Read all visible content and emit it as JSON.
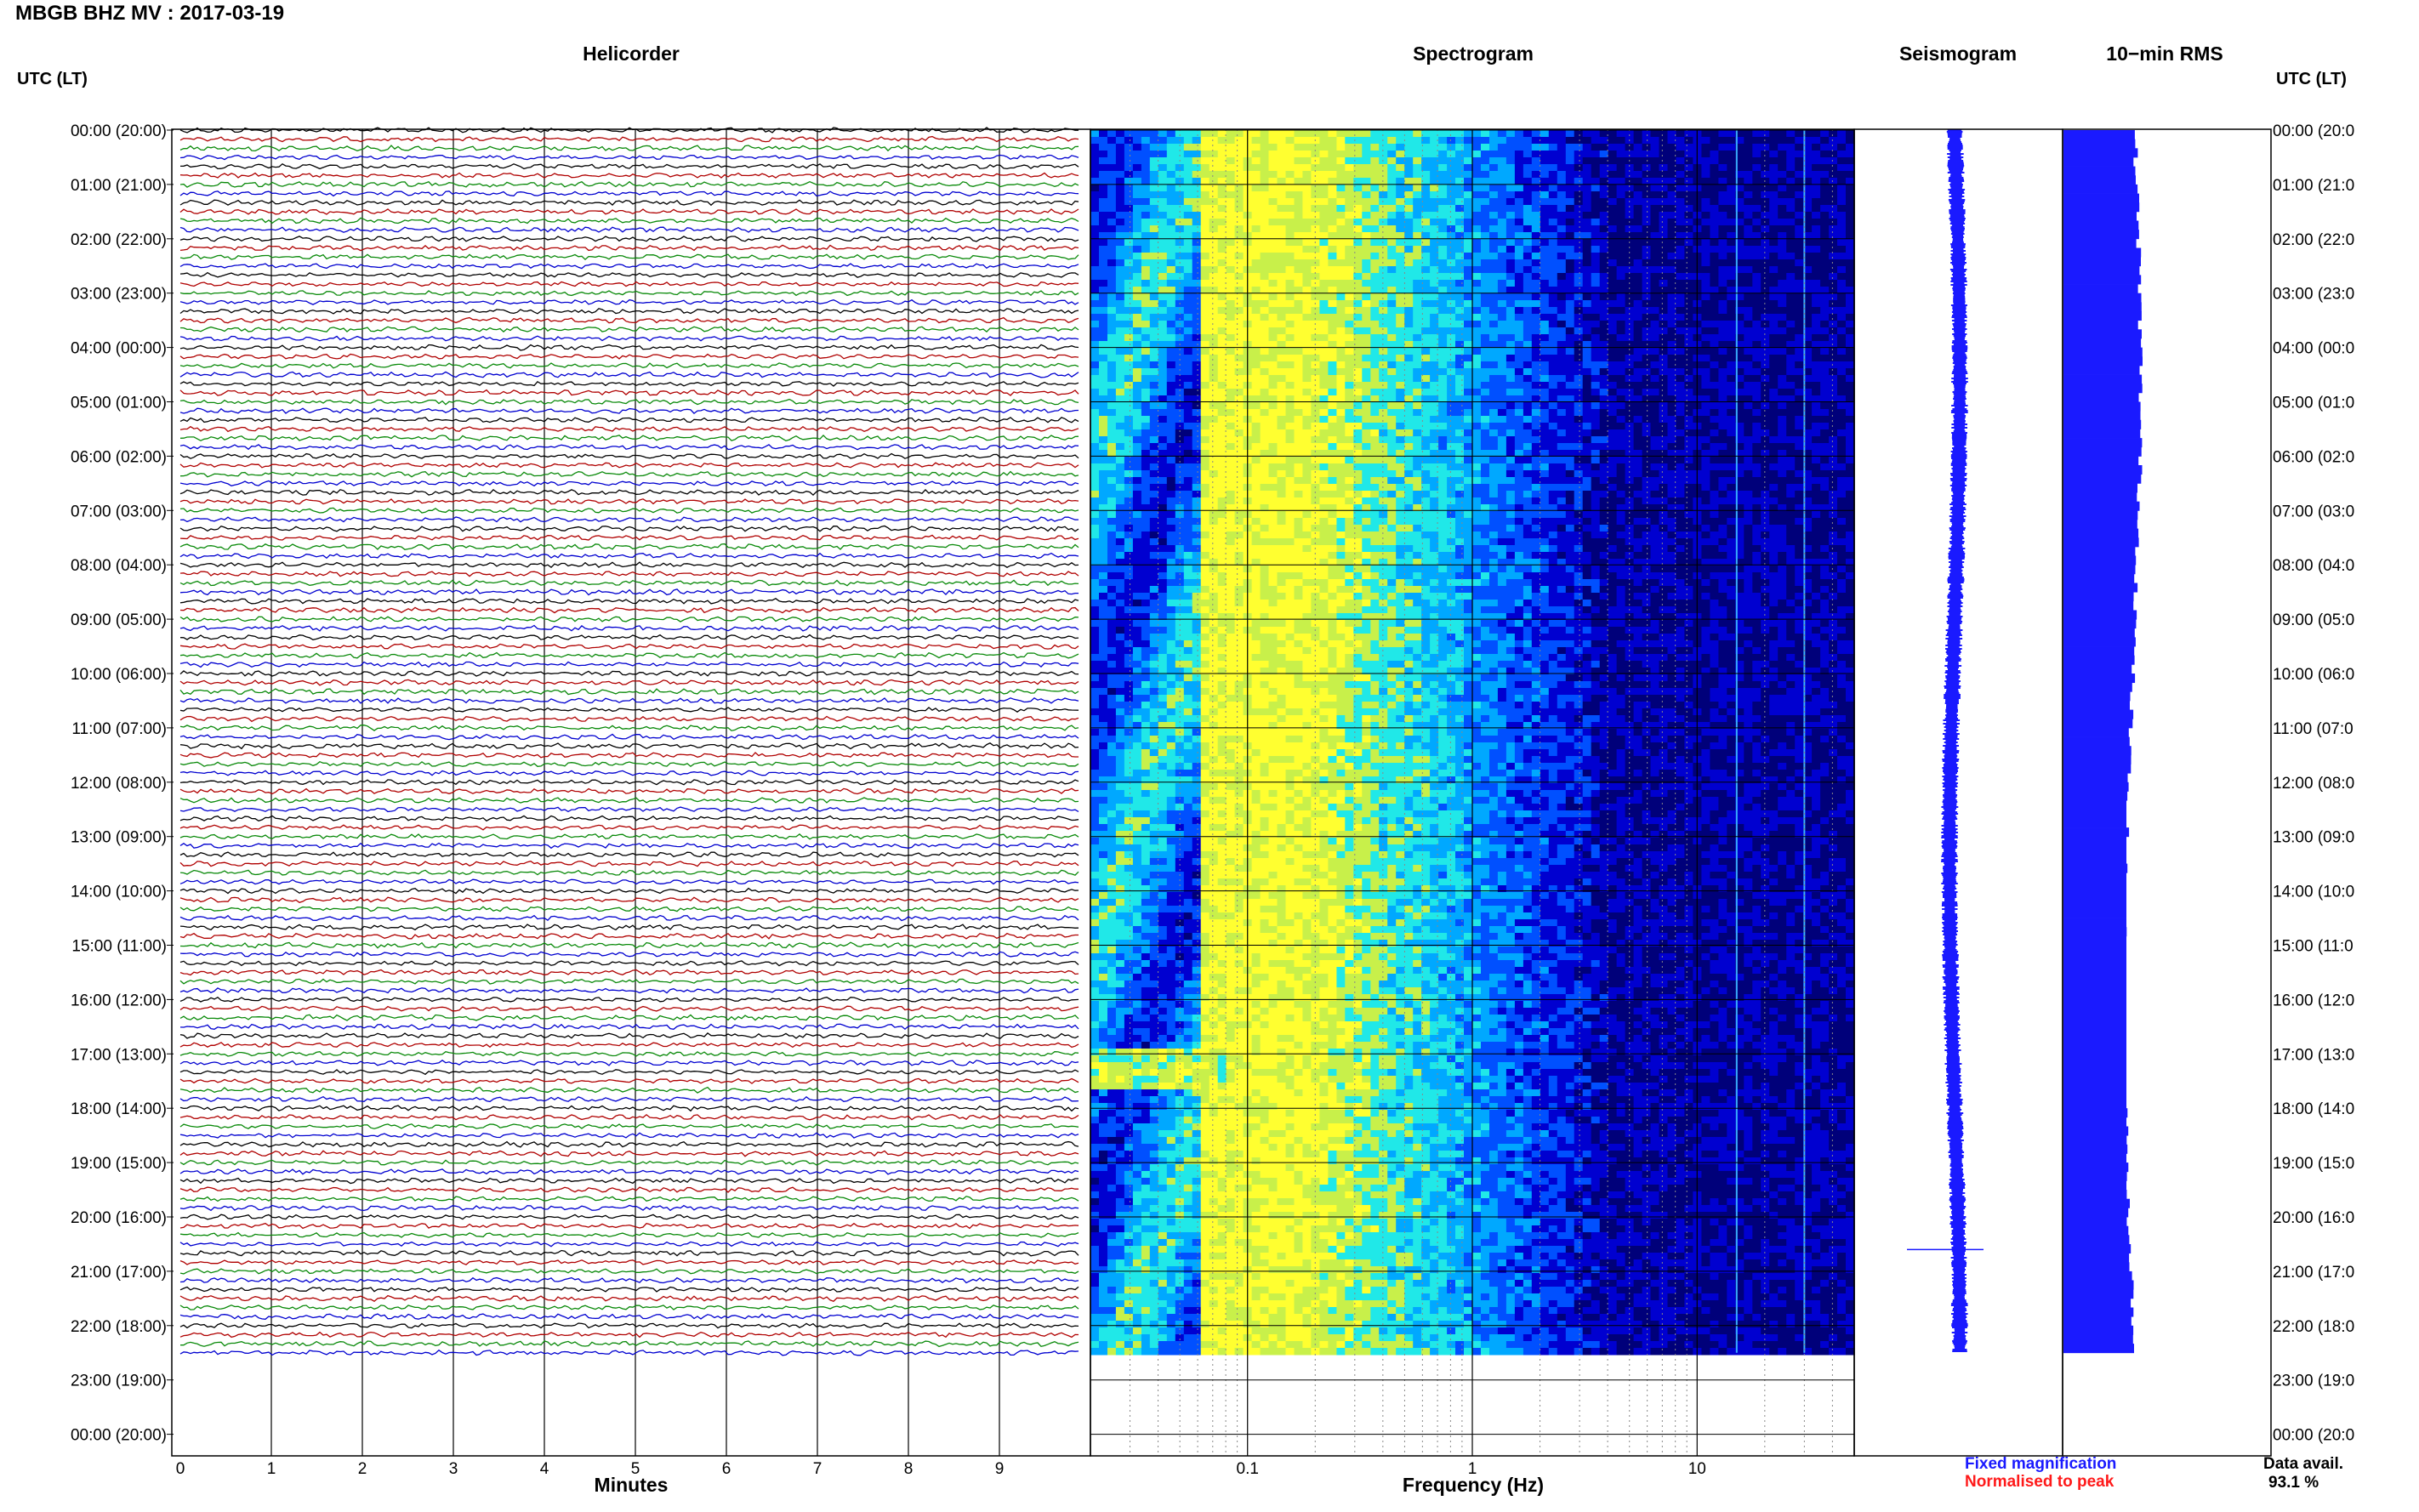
{
  "header": {
    "title": "MBGB BHZ MV : 2017-03-19",
    "utc_lt_left": "UTC (LT)",
    "utc_lt_right": "UTC (LT)"
  },
  "panels": {
    "helicorder": "Helicorder",
    "spectrogram": "Spectrogram",
    "seismogram": "Seismogram",
    "rms": "10−min RMS"
  },
  "axes": {
    "minutes_label": "Minutes",
    "frequency_label": "Frequency (Hz)",
    "minute_ticks": [
      "0",
      "1",
      "2",
      "3",
      "4",
      "5",
      "6",
      "7",
      "8",
      "9"
    ],
    "frequency_ticks": [
      "0.1",
      "1",
      "10"
    ]
  },
  "legend": {
    "fixed": "Fixed magnification",
    "normalised": "Normalised to peak"
  },
  "availability": {
    "label": "Data avail.",
    "value": "93.1 %"
  },
  "chart_data": [
    {
      "type": "line",
      "title": "Helicorder",
      "xlabel": "Minutes",
      "xlim": [
        0,
        10
      ],
      "row_labels_left": [
        "00:00 (20:00)",
        "01:00 (21:00)",
        "02:00 (22:00)",
        "03:00 (23:00)",
        "04:00 (00:00)",
        "05:00 (01:00)",
        "06:00 (02:00)",
        "07:00 (03:00)",
        "08:00 (04:00)",
        "09:00 (05:00)",
        "10:00 (06:00)",
        "11:00 (07:00)",
        "12:00 (08:00)",
        "13:00 (09:00)",
        "14:00 (10:00)",
        "15:00 (11:00)",
        "16:00 (12:00)",
        "17:00 (13:00)",
        "18:00 (14:00)",
        "19:00 (15:00)",
        "20:00 (16:00)",
        "21:00 (17:00)",
        "22:00 (18:00)",
        "23:00 (19:00)",
        "00:00 (20:00)"
      ],
      "row_labels_right": [
        "00:00 (20:0",
        "01:00 (21:0",
        "02:00 (22:0",
        "03:00 (23:0",
        "04:00 (00:0",
        "05:00 (01:0",
        "06:00 (02:0",
        "07:00 (03:0",
        "08:00 (04:0",
        "09:00 (05:0",
        "10:00 (06:0",
        "11:00 (07:0",
        "12:00 (08:0",
        "13:00 (09:0",
        "14:00 (10:0",
        "15:00 (11:0",
        "16:00 (12:0",
        "17:00 (13:0",
        "18:00 (14:0",
        "19:00 (15:0",
        "20:00 (16:0",
        "21:00 (17:0",
        "22:00 (18:0",
        "23:00 (19:0",
        "00:00 (20:0"
      ],
      "trace_colors": [
        "#000000",
        "#b00000",
        "#0a8a0a",
        "#0000d0"
      ],
      "traces_per_hour": 6,
      "hours_recorded": 22.5
    },
    {
      "type": "heatmap",
      "title": "Spectrogram",
      "xlabel": "Frequency (Hz)",
      "x_scale": "log",
      "xlim": [
        0.02,
        50
      ],
      "xticks": [
        0.1,
        1,
        10
      ],
      "colormap": [
        "#00007a",
        "#0000d0",
        "#0050ff",
        "#00a8ff",
        "#20e8e8",
        "#c8f04a",
        "#ffff30"
      ],
      "peak_band_hz": [
        0.17,
        0.5
      ],
      "narrow_lines_hz": [
        15,
        30
      ]
    },
    {
      "type": "line",
      "title": "Seismogram",
      "color": "#1a1aff",
      "glitch_hour": 20.6
    },
    {
      "type": "bar",
      "title": "10−min RMS",
      "color": "#1a1aff",
      "orientation": "horizontal",
      "bins": 135,
      "relative_level_range": [
        0.75,
        1.0
      ]
    }
  ]
}
